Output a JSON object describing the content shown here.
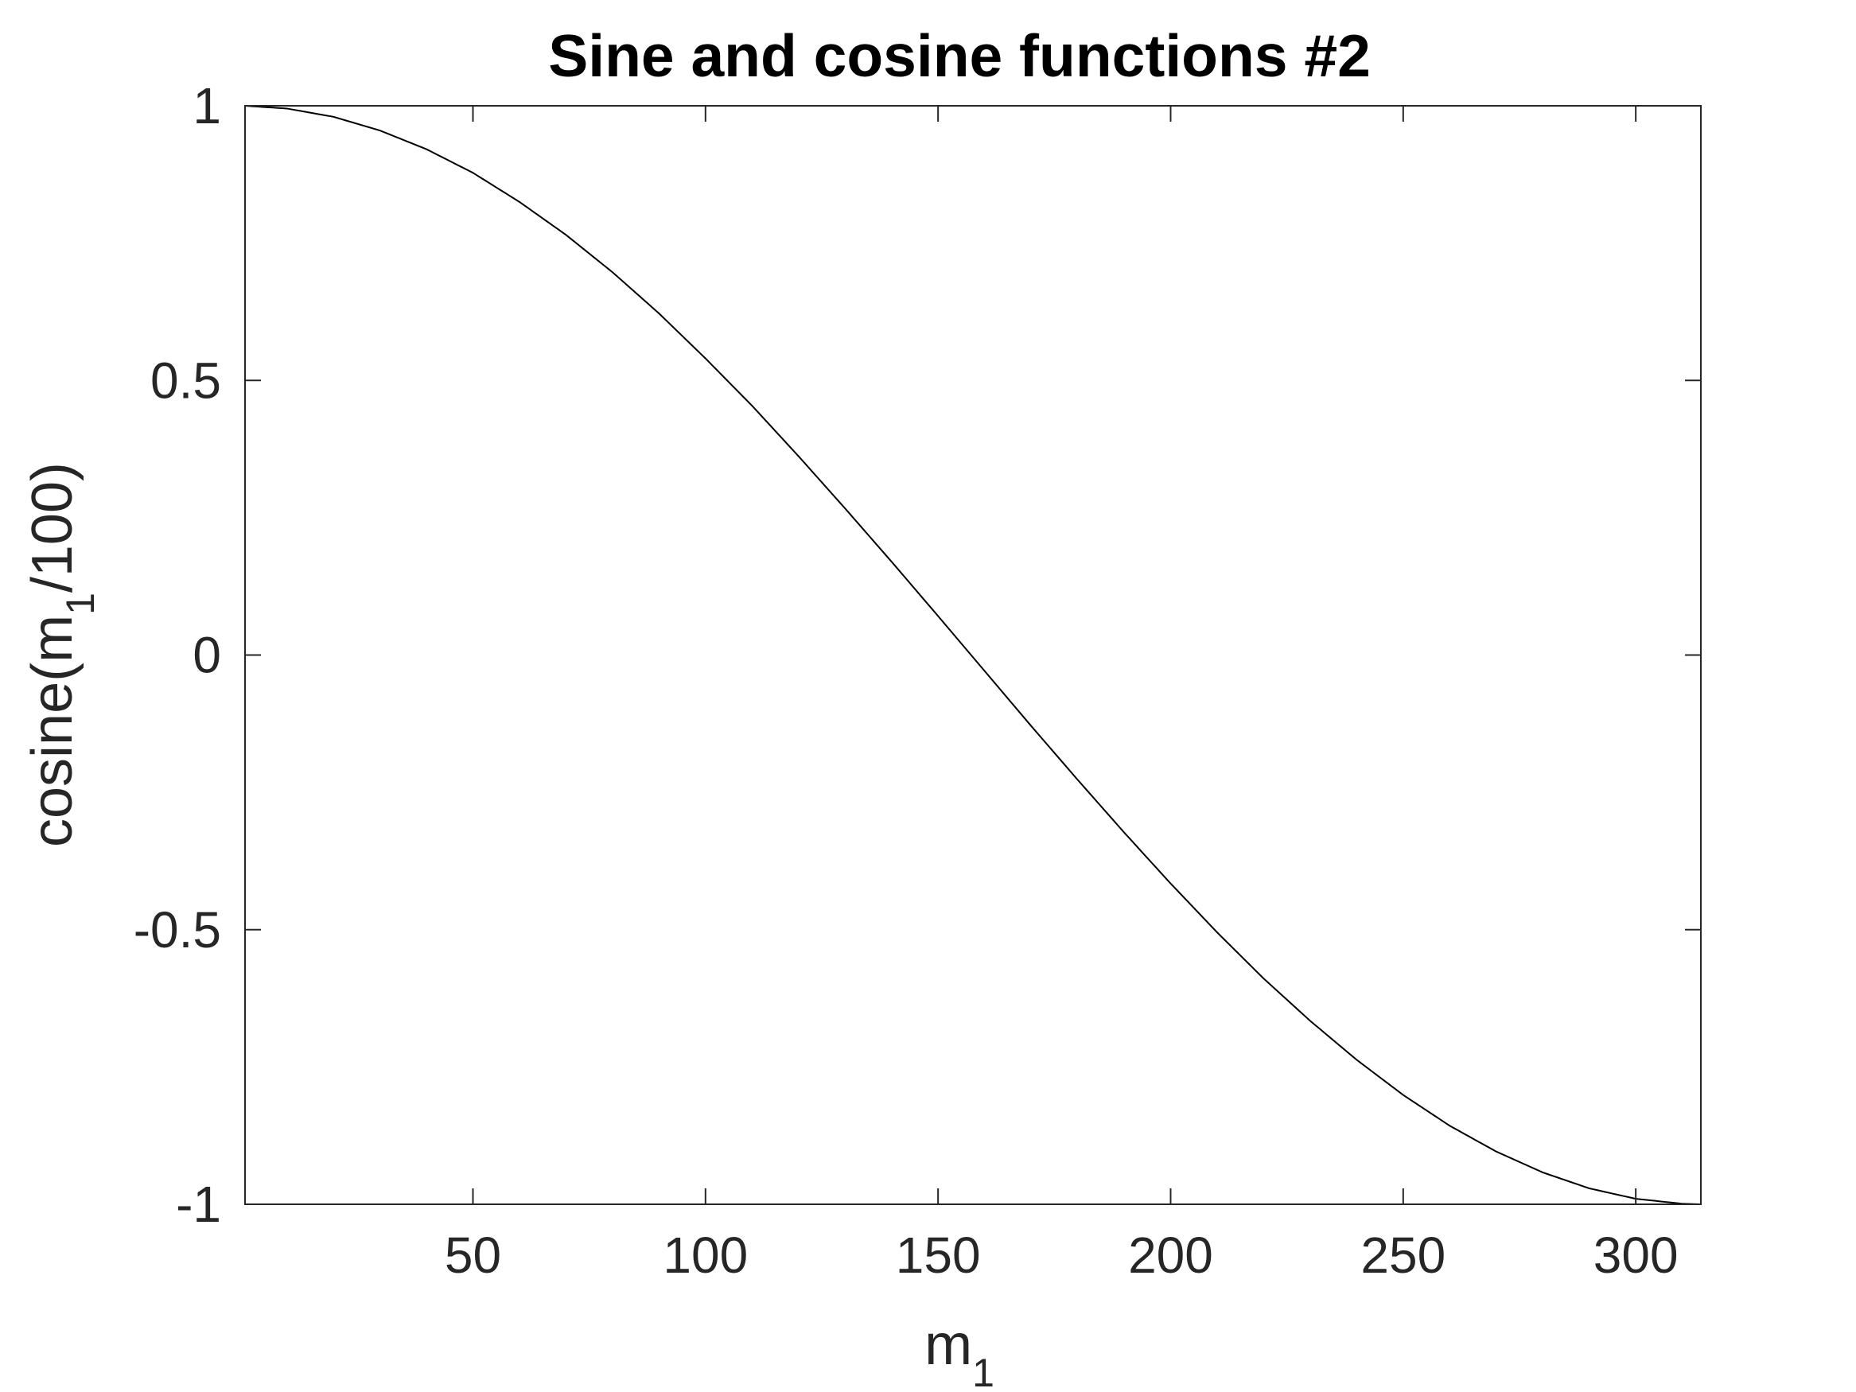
{
  "chart_data": {
    "type": "line",
    "title": "Sine and cosine functions #2",
    "xlabel": {
      "base": "m",
      "sub": "1"
    },
    "ylabel": {
      "prefix": "cosine(m",
      "sub": "1",
      "suffix": "/100)"
    },
    "xlim": [
      1,
      314
    ],
    "ylim": [
      -1,
      1
    ],
    "xticks": [
      50,
      100,
      150,
      200,
      250,
      300
    ],
    "xtick_labels": [
      "50",
      "100",
      "150",
      "200",
      "250",
      "300"
    ],
    "yticks": [
      -1,
      -0.5,
      0,
      0.5,
      1
    ],
    "ytick_labels": [
      "-1",
      "-0.5",
      "0",
      "0.5",
      "1"
    ],
    "grid": false,
    "legend": "none",
    "series": [
      {
        "color": "#000000",
        "x": [
          1,
          10,
          20,
          30,
          40,
          50,
          60,
          70,
          80,
          90,
          100,
          110,
          120,
          130,
          140,
          150,
          160,
          170,
          180,
          190,
          200,
          210,
          220,
          230,
          240,
          250,
          260,
          270,
          280,
          290,
          300,
          310,
          314
        ],
        "y": [
          1.0,
          0.995,
          0.98,
          0.955,
          0.921,
          0.878,
          0.825,
          0.765,
          0.697,
          0.622,
          0.54,
          0.454,
          0.362,
          0.267,
          0.17,
          0.071,
          -0.029,
          -0.129,
          -0.227,
          -0.323,
          -0.416,
          -0.505,
          -0.589,
          -0.666,
          -0.737,
          -0.801,
          -0.857,
          -0.904,
          -0.942,
          -0.971,
          -0.99,
          -0.999,
          -1.0
        ]
      }
    ]
  }
}
